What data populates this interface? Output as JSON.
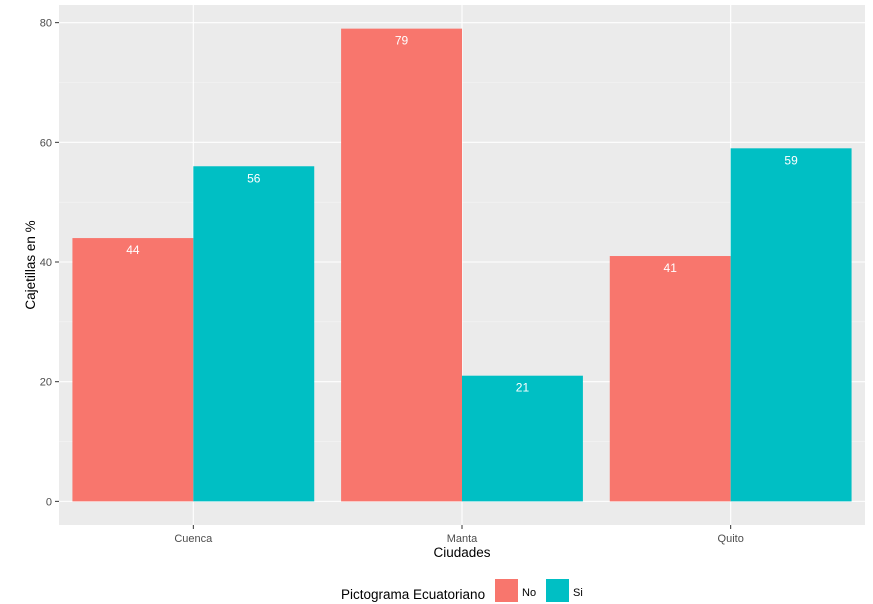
{
  "chart_data": {
    "type": "bar",
    "categories": [
      "Cuenca",
      "Manta",
      "Quito"
    ],
    "series": [
      {
        "name": "No",
        "values": [
          44,
          79,
          41
        ],
        "color": "#F8766D"
      },
      {
        "name": "Si",
        "values": [
          56,
          21,
          59
        ],
        "color": "#00BFC4"
      }
    ],
    "xlabel": "Ciudades",
    "ylabel": "Cajetillas en %",
    "ylim": [
      -3.95,
      82.95
    ],
    "yticks": [
      0,
      20,
      40,
      60,
      80
    ],
    "grid": true,
    "panel_background": "#EBEBEB",
    "grid_color": "#FFFFFF",
    "legend": {
      "title": "Pictograma Ecuatoriano",
      "position": "bottom"
    }
  }
}
